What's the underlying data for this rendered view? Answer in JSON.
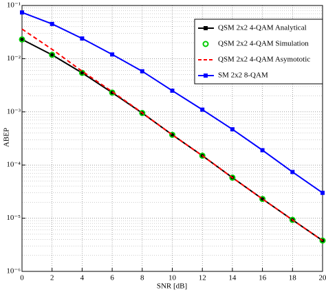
{
  "chart_data": {
    "type": "line",
    "x_label": "SNR [dB]",
    "y_label": "ABEP",
    "log_y": true,
    "grid": true,
    "x": [
      0,
      2,
      4,
      6,
      8,
      10,
      12,
      14,
      16,
      18,
      20
    ],
    "xlim": [
      0,
      20
    ],
    "xticks": [
      0,
      2,
      4,
      6,
      8,
      10,
      12,
      14,
      16,
      18,
      20
    ],
    "ylim": [
      1e-06,
      0.1
    ],
    "yticks": [
      {
        "value": 1e-06,
        "label": "10⁻⁶"
      },
      {
        "value": 1e-05,
        "label": "10⁻⁵"
      },
      {
        "value": 0.0001,
        "label": "10⁻⁴"
      },
      {
        "value": 0.001,
        "label": "10⁻³"
      },
      {
        "value": 0.01,
        "label": "10⁻²"
      },
      {
        "value": 0.1,
        "label": "10⁻¹"
      }
    ],
    "legend": "upper right",
    "series": [
      {
        "name": "QSM 2x2 4-QAM Analytical",
        "color": "#000000",
        "marker": "square",
        "dashed": false,
        "values": [
          0.023,
          0.0118,
          0.0054,
          0.0023,
          0.00095,
          0.00037,
          0.00015,
          5.8e-05,
          2.3e-05,
          9.3e-06,
          3.8e-06
        ]
      },
      {
        "name": "QSM 2x2 4-QAM Simulation",
        "color": "#00cc00",
        "marker": "circle",
        "dashed": false,
        "values": [
          0.023,
          0.0118,
          0.0054,
          0.0023,
          0.00095,
          0.00037,
          0.00015,
          5.8e-05,
          2.3e-05,
          9.3e-06,
          3.8e-06
        ]
      },
      {
        "name": "QSM 2x2 4-QAM Asymototic",
        "color": "#ff0000",
        "marker": "none",
        "dashed": true,
        "values": [
          0.036,
          0.015,
          0.0058,
          0.0024,
          0.00096,
          0.00037,
          0.00015,
          5.8e-05,
          2.3e-05,
          9.3e-06,
          3.8e-06
        ]
      },
      {
        "name": "SM 2x2 8-QAM",
        "color": "#0000ff",
        "marker": "square",
        "dashed": false,
        "values": [
          0.074,
          0.045,
          0.024,
          0.012,
          0.0058,
          0.0025,
          0.0011,
          0.00047,
          0.00019,
          7.4e-05,
          3e-05
        ]
      }
    ]
  }
}
